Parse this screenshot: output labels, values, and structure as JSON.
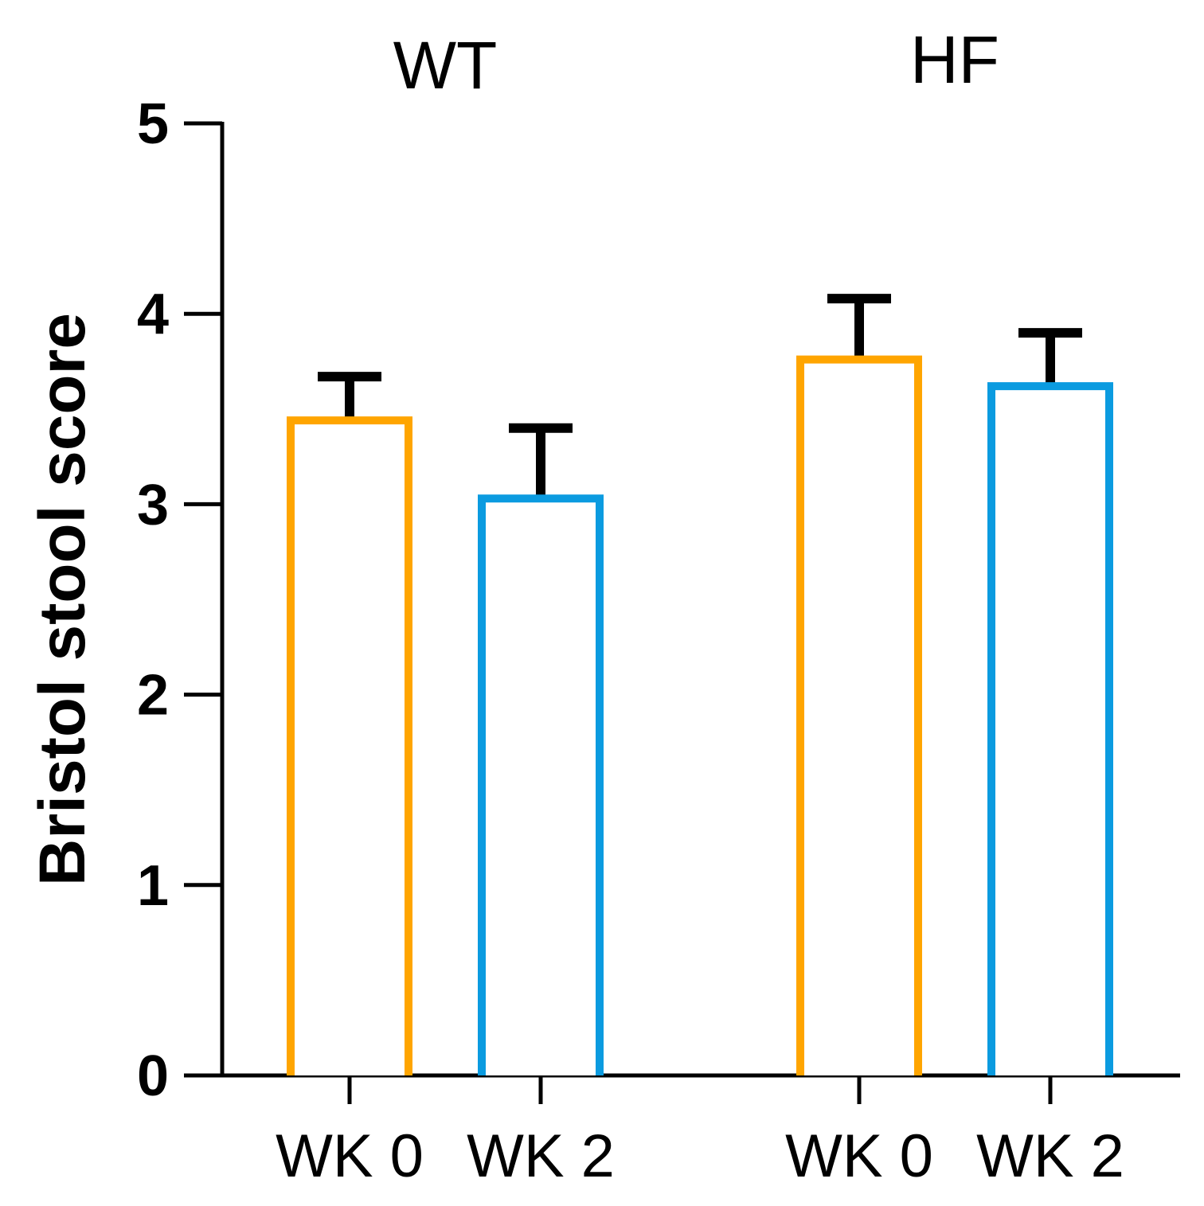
{
  "chart_data": {
    "type": "bar",
    "title": "",
    "xlabel": "",
    "ylabel": "Bristol stool score",
    "ylim": [
      0,
      5
    ],
    "yticks": [
      "0",
      "1",
      "2",
      "3",
      "4",
      "5"
    ],
    "grid": false,
    "legend": "none",
    "groups": [
      {
        "name": "WT",
        "bars": [
          {
            "category": "WK 0",
            "value": 3.44,
            "error": 0.23,
            "color": "#FFA500"
          },
          {
            "category": "WK 2",
            "value": 3.03,
            "error": 0.37,
            "color": "#0B9BE0"
          }
        ]
      },
      {
        "name": "HF",
        "bars": [
          {
            "category": "WK 0",
            "value": 3.76,
            "error": 0.32,
            "color": "#FFA500"
          },
          {
            "category": "WK 2",
            "value": 3.62,
            "error": 0.28,
            "color": "#0B9BE0"
          }
        ]
      }
    ]
  }
}
